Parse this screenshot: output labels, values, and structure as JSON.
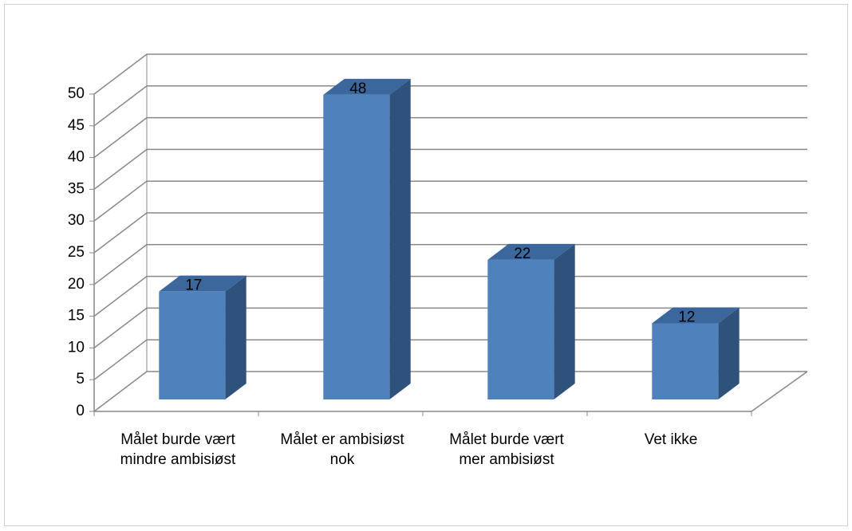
{
  "chart_data": {
    "type": "bar3d",
    "categories": [
      "Målet burde vært mindre ambisiøst",
      "Målet er ambisiøst nok",
      "Målet burde vært mer ambisiøst",
      "Vet ikke"
    ],
    "values": [
      17,
      48,
      22,
      12
    ],
    "color": "#4f81bd",
    "ylim": [
      0,
      50
    ],
    "yticks": [
      0,
      5,
      10,
      15,
      20,
      25,
      30,
      35,
      40,
      45,
      50
    ],
    "grid": true
  }
}
